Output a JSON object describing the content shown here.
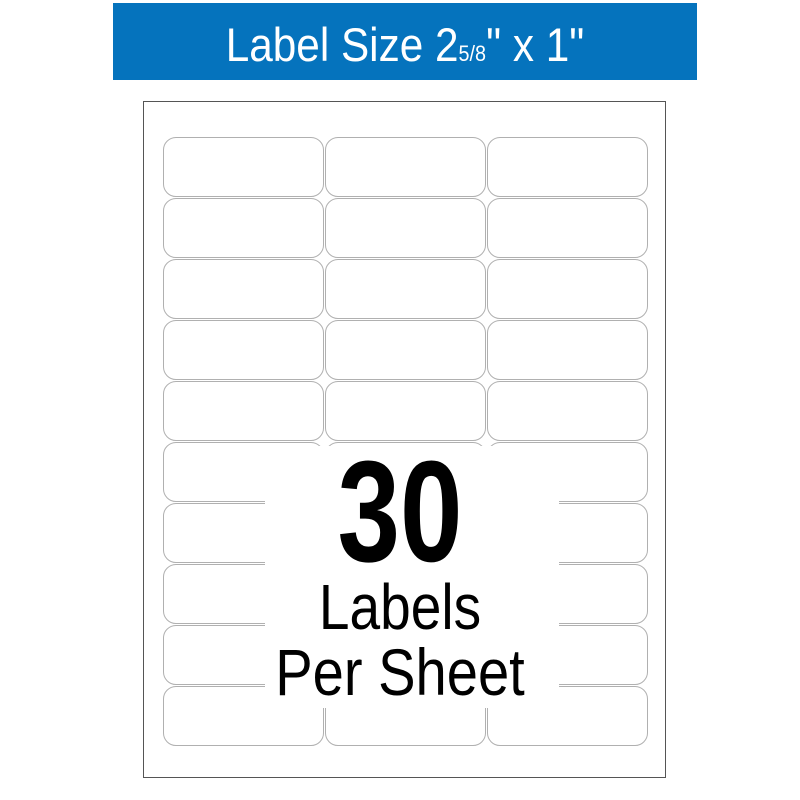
{
  "header": {
    "prefix": "Label Size  2",
    "fraction": "5/8",
    "suffix": "\" x 1\"",
    "background_color": "#0573bd"
  },
  "sheet": {
    "columns": 3,
    "rows": 10
  },
  "callout": {
    "count": "30",
    "line1": "Labels",
    "line2": "Per Sheet"
  }
}
